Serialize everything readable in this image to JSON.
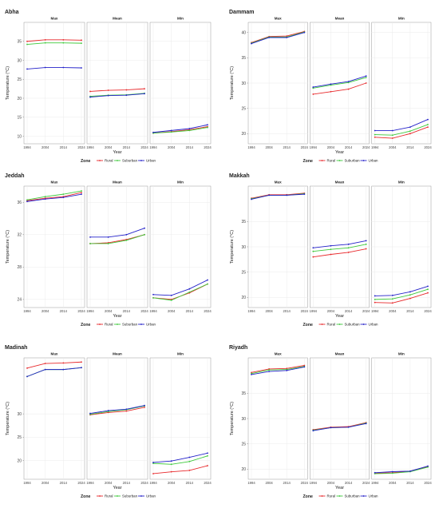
{
  "years": [
    "1994",
    "2004",
    "2014",
    "2024"
  ],
  "colors": {
    "Rural": "#e8292c",
    "Suburban": "#3ec93b",
    "Urban": "#2320c9"
  },
  "chart_data": [
    {
      "type": "line",
      "title": "Abha",
      "xlabel": "Year",
      "ylabel": "Temperature (°C)",
      "x": [
        1994,
        2004,
        2014,
        2024
      ],
      "panels": [
        "Max",
        "Mean",
        "Min"
      ],
      "ylim": [
        8,
        40
      ],
      "yticks": [
        10,
        15,
        20,
        25,
        30,
        35
      ],
      "legend_title": "Zone",
      "legend_position": "bottom",
      "series": [
        {
          "name": "Rural",
          "panel": "Max",
          "values": [
            35.0,
            35.4,
            35.4,
            35.3
          ]
        },
        {
          "name": "Suburban",
          "panel": "Max",
          "values": [
            34.2,
            34.6,
            34.6,
            34.5
          ]
        },
        {
          "name": "Urban",
          "panel": "Max",
          "values": [
            27.7,
            28.1,
            28.1,
            28.0
          ]
        },
        {
          "name": "Rural",
          "panel": "Mean",
          "values": [
            21.8,
            22.1,
            22.2,
            22.5
          ]
        },
        {
          "name": "Suburban",
          "panel": "Mean",
          "values": [
            20.5,
            20.8,
            20.9,
            21.3
          ]
        },
        {
          "name": "Urban",
          "panel": "Mean",
          "values": [
            20.3,
            20.7,
            20.8,
            21.2
          ]
        },
        {
          "name": "Rural",
          "panel": "Min",
          "values": [
            10.8,
            11.2,
            11.7,
            12.5
          ]
        },
        {
          "name": "Suburban",
          "panel": "Min",
          "values": [
            10.8,
            11.1,
            11.5,
            12.3
          ]
        },
        {
          "name": "Urban",
          "panel": "Min",
          "values": [
            11.0,
            11.5,
            12.0,
            13.0
          ]
        }
      ]
    },
    {
      "type": "line",
      "title": "Dammam",
      "xlabel": "Year",
      "ylabel": "Temperature (°C)",
      "x": [
        1994,
        2004,
        2014,
        2024
      ],
      "panels": [
        "Max",
        "Mean",
        "Min"
      ],
      "ylim": [
        18,
        42
      ],
      "yticks": [
        20,
        25,
        30,
        35,
        40
      ],
      "legend_title": "Zone",
      "legend_position": "bottom",
      "series": [
        {
          "name": "Rural",
          "panel": "Max",
          "values": [
            38.0,
            39.2,
            39.3,
            40.2
          ]
        },
        {
          "name": "Suburban",
          "panel": "Max",
          "values": [
            37.9,
            39.1,
            39.1,
            40.1
          ]
        },
        {
          "name": "Urban",
          "panel": "Max",
          "values": [
            37.8,
            39.0,
            39.0,
            40.0
          ]
        },
        {
          "name": "Rural",
          "panel": "Mean",
          "values": [
            27.8,
            28.3,
            28.8,
            30.0
          ]
        },
        {
          "name": "Suburban",
          "panel": "Mean",
          "values": [
            29.0,
            29.6,
            30.1,
            31.1
          ]
        },
        {
          "name": "Urban",
          "panel": "Mean",
          "values": [
            29.2,
            29.8,
            30.3,
            31.4
          ]
        },
        {
          "name": "Rural",
          "panel": "Min",
          "values": [
            19.3,
            19.1,
            20.0,
            21.3
          ]
        },
        {
          "name": "Suburban",
          "panel": "Min",
          "values": [
            19.8,
            19.7,
            20.5,
            21.8
          ]
        },
        {
          "name": "Urban",
          "panel": "Min",
          "values": [
            20.6,
            20.6,
            21.3,
            22.8
          ]
        }
      ]
    },
    {
      "type": "line",
      "title": "Jeddah",
      "xlabel": "Year",
      "ylabel": "Temperature (°C)",
      "x": [
        1994,
        2004,
        2014,
        2024
      ],
      "panels": [
        "Max",
        "Mean",
        "Min"
      ],
      "ylim": [
        23,
        38
      ],
      "yticks": [
        24,
        28,
        32,
        36
      ],
      "legend_title": "Zone",
      "legend_position": "bottom",
      "series": [
        {
          "name": "Rural",
          "panel": "Max",
          "values": [
            36.2,
            36.5,
            36.7,
            37.2
          ]
        },
        {
          "name": "Suburban",
          "panel": "Max",
          "values": [
            36.3,
            36.7,
            37.0,
            37.4
          ]
        },
        {
          "name": "Urban",
          "panel": "Max",
          "values": [
            36.1,
            36.4,
            36.6,
            37.0
          ]
        },
        {
          "name": "Rural",
          "panel": "Mean",
          "values": [
            30.9,
            31.0,
            31.4,
            32.0
          ]
        },
        {
          "name": "Suburban",
          "panel": "Mean",
          "values": [
            30.9,
            30.9,
            31.3,
            32.0
          ]
        },
        {
          "name": "Urban",
          "panel": "Mean",
          "values": [
            31.7,
            31.7,
            32.0,
            32.8
          ]
        },
        {
          "name": "Rural",
          "panel": "Min",
          "values": [
            24.2,
            24.0,
            24.8,
            25.9
          ]
        },
        {
          "name": "Suburban",
          "panel": "Min",
          "values": [
            24.2,
            23.9,
            24.9,
            25.9
          ]
        },
        {
          "name": "Urban",
          "panel": "Min",
          "values": [
            24.6,
            24.5,
            25.3,
            26.4
          ]
        }
      ]
    },
    {
      "type": "line",
      "title": "Makkah",
      "xlabel": "Year",
      "ylabel": "Temperature (°C)",
      "x": [
        1994,
        2004,
        2014,
        2024
      ],
      "panels": [
        "Max",
        "Mean",
        "Min"
      ],
      "ylim": [
        18,
        42
      ],
      "yticks": [
        20,
        25,
        30,
        35
      ],
      "legend_title": "Zone",
      "legend_position": "bottom",
      "series": [
        {
          "name": "Rural",
          "panel": "Max",
          "values": [
            39.6,
            40.3,
            40.3,
            40.6
          ]
        },
        {
          "name": "Suburban",
          "panel": "Max",
          "values": [
            39.5,
            40.2,
            40.2,
            40.5
          ]
        },
        {
          "name": "Urban",
          "panel": "Max",
          "values": [
            39.4,
            40.2,
            40.2,
            40.4
          ]
        },
        {
          "name": "Rural",
          "panel": "Mean",
          "values": [
            28.0,
            28.5,
            28.9,
            29.6
          ]
        },
        {
          "name": "Suburban",
          "panel": "Mean",
          "values": [
            29.1,
            29.5,
            29.8,
            30.5
          ]
        },
        {
          "name": "Urban",
          "panel": "Mean",
          "values": [
            29.8,
            30.2,
            30.5,
            31.2
          ]
        },
        {
          "name": "Rural",
          "panel": "Min",
          "values": [
            19.0,
            18.9,
            19.8,
            20.9
          ]
        },
        {
          "name": "Suburban",
          "panel": "Min",
          "values": [
            19.6,
            19.7,
            20.5,
            21.6
          ]
        },
        {
          "name": "Urban",
          "panel": "Min",
          "values": [
            20.3,
            20.4,
            21.1,
            22.2
          ]
        }
      ]
    },
    {
      "type": "line",
      "title": "Madinah",
      "xlabel": "Year",
      "ylabel": "Temperature (°C)",
      "x": [
        1994,
        2004,
        2014,
        2024
      ],
      "panels": [
        "Max",
        "Mean",
        "Min"
      ],
      "ylim": [
        16,
        42
      ],
      "yticks": [
        20,
        25,
        30
      ],
      "legend_title": "Zone",
      "legend_position": "bottom",
      "series": [
        {
          "name": "Rural",
          "panel": "Max",
          "values": [
            39.8,
            40.8,
            40.9,
            41.1
          ]
        },
        {
          "name": "Suburban",
          "panel": "Max",
          "values": [
            38.0,
            39.5,
            39.5,
            39.9
          ]
        },
        {
          "name": "Urban",
          "panel": "Max",
          "values": [
            38.0,
            39.5,
            39.5,
            39.9
          ]
        },
        {
          "name": "Rural",
          "panel": "Mean",
          "values": [
            29.8,
            30.3,
            30.6,
            31.4
          ]
        },
        {
          "name": "Suburban",
          "panel": "Mean",
          "values": [
            29.9,
            30.5,
            30.9,
            31.7
          ]
        },
        {
          "name": "Urban",
          "panel": "Mean",
          "values": [
            30.1,
            30.7,
            31.0,
            31.8
          ]
        },
        {
          "name": "Rural",
          "panel": "Min",
          "values": [
            17.2,
            17.6,
            17.9,
            18.9
          ]
        },
        {
          "name": "Suburban",
          "panel": "Min",
          "values": [
            19.4,
            19.2,
            19.8,
            21.0
          ]
        },
        {
          "name": "Urban",
          "panel": "Min",
          "values": [
            19.6,
            19.9,
            20.7,
            21.6
          ]
        }
      ]
    },
    {
      "type": "line",
      "title": "Riyadh",
      "xlabel": "Year",
      "ylabel": "Temperature (°C)",
      "x": [
        1994,
        2004,
        2014,
        2024
      ],
      "panels": [
        "Max",
        "Mean",
        "Min"
      ],
      "ylim": [
        18,
        42
      ],
      "yticks": [
        20,
        25,
        30,
        35
      ],
      "legend_title": "Zone",
      "legend_position": "bottom",
      "series": [
        {
          "name": "Rural",
          "panel": "Max",
          "values": [
            39.1,
            39.8,
            39.9,
            40.5
          ]
        },
        {
          "name": "Suburban",
          "panel": "Max",
          "values": [
            38.9,
            39.6,
            39.7,
            40.3
          ]
        },
        {
          "name": "Urban",
          "panel": "Max",
          "values": [
            38.7,
            39.3,
            39.5,
            40.2
          ]
        },
        {
          "name": "Rural",
          "panel": "Mean",
          "values": [
            27.8,
            28.3,
            28.4,
            29.2
          ]
        },
        {
          "name": "Suburban",
          "panel": "Mean",
          "values": [
            27.7,
            28.2,
            28.3,
            29.1
          ]
        },
        {
          "name": "Urban",
          "panel": "Mean",
          "values": [
            27.6,
            28.2,
            28.3,
            29.0
          ]
        },
        {
          "name": "Rural",
          "panel": "Min",
          "values": [
            19.2,
            19.3,
            19.6,
            20.5
          ]
        },
        {
          "name": "Suburban",
          "panel": "Min",
          "values": [
            19.1,
            19.2,
            19.5,
            20.4
          ]
        },
        {
          "name": "Urban",
          "panel": "Min",
          "values": [
            19.3,
            19.5,
            19.6,
            20.6
          ]
        }
      ]
    }
  ]
}
